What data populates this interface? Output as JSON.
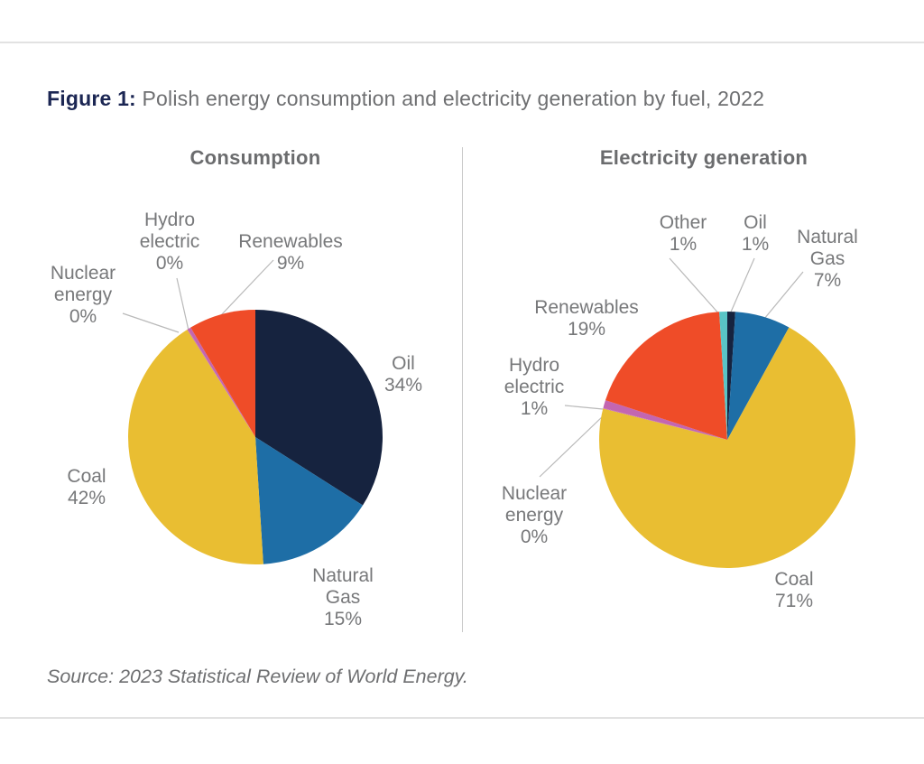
{
  "title": {
    "prefix": "Figure 1:",
    "text": " Polish energy consumption and electricity generation by fuel, 2022"
  },
  "source": "Source: 2023 Statistical Review of World Energy.",
  "colors": {
    "oil_navy": "#16233F",
    "natural_gas_blue": "#1E6EA6",
    "coal_yellow": "#E9BE32",
    "nuclear_hydro_pink": "#C366B1",
    "renewables_orange": "#EF4C28",
    "other_teal": "#59C4C6",
    "title_navy": "#1B2653",
    "label_gray": "#77787A",
    "leader_gray": "#B9B9B9"
  },
  "chart_data": [
    {
      "type": "pie",
      "title": "Consumption",
      "legend_position": "callout-labels",
      "categories": [
        "Oil",
        "Natural Gas",
        "Coal",
        "Nuclear energy",
        "Hydro electric",
        "Renewables"
      ],
      "values": [
        34,
        15,
        42,
        0,
        0,
        9
      ],
      "slices": [
        {
          "name": "Oil",
          "pct": 34,
          "color": "#16233F",
          "sweep": 122.4,
          "lines": [
            "Oil",
            "34%"
          ]
        },
        {
          "name": "Natural Gas",
          "pct": 15,
          "color": "#1E6EA6",
          "sweep": 54.0,
          "lines": [
            "Natural",
            "Gas",
            "15%"
          ]
        },
        {
          "name": "Coal",
          "pct": 42,
          "color": "#E9BE32",
          "sweep": 151.2,
          "lines": [
            "Coal",
            "42%"
          ]
        },
        {
          "name": "Nuclear energy",
          "pct": 0,
          "color": "#C366B1",
          "sweep": 0.3,
          "lines": [
            "Nuclear",
            "energy",
            "0%"
          ]
        },
        {
          "name": "Hydro electric",
          "pct": 0,
          "color": "#C366B1",
          "sweep": 1.5,
          "lines": [
            "Hydro",
            "electric",
            "0%"
          ]
        },
        {
          "name": "Renewables",
          "pct": 9,
          "color": "#EF4C28",
          "sweep": 30.6,
          "lines": [
            "Renewables",
            "9%"
          ]
        }
      ]
    },
    {
      "type": "pie",
      "title": "Electricity generation",
      "legend_position": "callout-labels",
      "categories": [
        "Oil",
        "Natural Gas",
        "Coal",
        "Nuclear energy",
        "Hydro electric",
        "Renewables",
        "Other"
      ],
      "values": [
        1,
        7,
        71,
        0,
        1,
        19,
        1
      ],
      "slices": [
        {
          "name": "Oil",
          "pct": 1,
          "color": "#16233F",
          "sweep": 3.6,
          "lines": [
            "Oil",
            "1%"
          ]
        },
        {
          "name": "Natural Gas",
          "pct": 7,
          "color": "#1E6EA6",
          "sweep": 25.2,
          "lines": [
            "Natural",
            "Gas",
            "7%"
          ]
        },
        {
          "name": "Coal",
          "pct": 71,
          "color": "#E9BE32",
          "sweep": 255.3,
          "lines": [
            "Coal",
            "71%"
          ]
        },
        {
          "name": "Nuclear energy",
          "pct": 0,
          "color": "#C366B1",
          "sweep": 0.3,
          "lines": [
            "Nuclear",
            "energy",
            "0%"
          ]
        },
        {
          "name": "Hydro electric",
          "pct": 1,
          "color": "#C366B1",
          "sweep": 3.6,
          "lines": [
            "Hydro",
            "electric",
            "1%"
          ]
        },
        {
          "name": "Renewables",
          "pct": 19,
          "color": "#EF4C28",
          "sweep": 68.4,
          "lines": [
            "Renewables",
            "19%"
          ]
        },
        {
          "name": "Other",
          "pct": 1,
          "color": "#59C4C6",
          "sweep": 3.6,
          "lines": [
            "Other",
            "1%"
          ]
        }
      ]
    }
  ]
}
